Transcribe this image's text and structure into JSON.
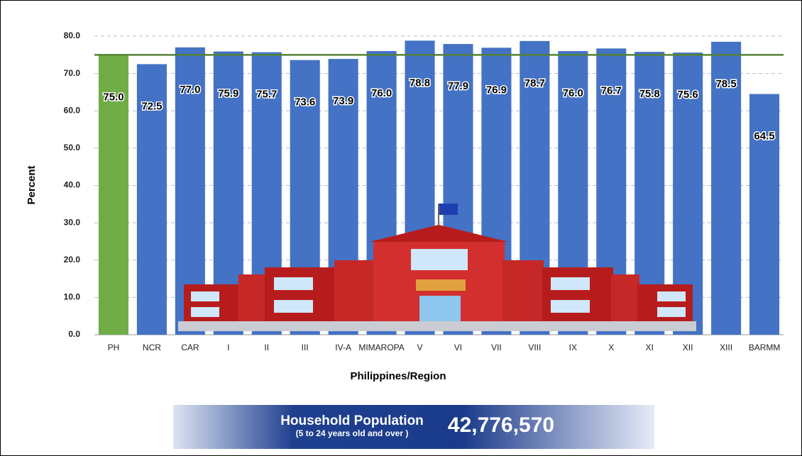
{
  "chart_data": {
    "type": "bar",
    "x_label": "Philippines/Region",
    "y_label": "Percent",
    "categories": [
      "PH",
      "NCR",
      "CAR",
      "I",
      "II",
      "III",
      "IV-A",
      "MIMAROPA",
      "V",
      "VI",
      "VII",
      "VIII",
      "IX",
      "X",
      "XI",
      "XII",
      "XIII",
      "BARMM"
    ],
    "values": [
      75.0,
      72.5,
      77.0,
      75.9,
      75.7,
      73.6,
      73.9,
      76.0,
      78.8,
      77.9,
      76.9,
      78.7,
      76.0,
      76.7,
      75.8,
      75.6,
      78.5,
      64.5
    ],
    "value_labels": [
      "75.0",
      "72.5",
      "77.0",
      "75.9",
      "75.7",
      "73.6",
      "73.9",
      "76.0",
      "78.8",
      "77.9",
      "76.9",
      "78.7",
      "76.0",
      "76.7",
      "75.8",
      "75.6",
      "78.5",
      "64.5"
    ],
    "colors": [
      "#70ad47",
      "#4472c4",
      "#4472c4",
      "#4472c4",
      "#4472c4",
      "#4472c4",
      "#4472c4",
      "#4472c4",
      "#4472c4",
      "#4472c4",
      "#4472c4",
      "#4472c4",
      "#4472c4",
      "#4472c4",
      "#4472c4",
      "#4472c4",
      "#4472c4",
      "#4472c4"
    ],
    "ylim": [
      0,
      80
    ],
    "yticks": [
      {
        "value": 0,
        "label": "0.0"
      },
      {
        "value": 10,
        "label": "10.0"
      },
      {
        "value": 20,
        "label": "20.0"
      },
      {
        "value": 30,
        "label": "30.0"
      },
      {
        "value": 40,
        "label": "40.0"
      },
      {
        "value": 50,
        "label": "50.0"
      },
      {
        "value": 60,
        "label": "60.0"
      },
      {
        "value": 70,
        "label": "70.0"
      },
      {
        "value": 80,
        "label": "80.0"
      }
    ],
    "grid": true,
    "reference_line": {
      "value": 75,
      "color": "#548235"
    }
  },
  "banner": {
    "title": "Household Population",
    "subtitle": "(5 to 24 years old and over )",
    "value": "42,776,570"
  }
}
